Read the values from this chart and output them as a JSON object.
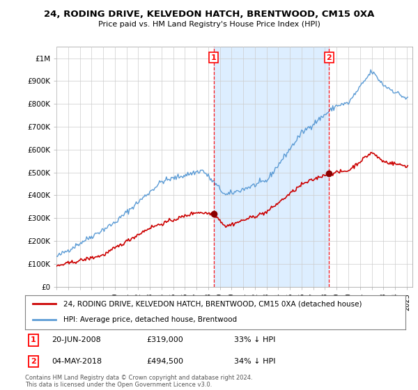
{
  "title": "24, RODING DRIVE, KELVEDON HATCH, BRENTWOOD, CM15 0XA",
  "subtitle": "Price paid vs. HM Land Registry's House Price Index (HPI)",
  "legend_line1": "24, RODING DRIVE, KELVEDON HATCH, BRENTWOOD, CM15 0XA (detached house)",
  "legend_line2": "HPI: Average price, detached house, Brentwood",
  "annotation1_date": "20-JUN-2008",
  "annotation1_price": "£319,000",
  "annotation1_hpi": "33% ↓ HPI",
  "annotation2_date": "04-MAY-2018",
  "annotation2_price": "£494,500",
  "annotation2_hpi": "34% ↓ HPI",
  "footer": "Contains HM Land Registry data © Crown copyright and database right 2024.\nThis data is licensed under the Open Government Licence v3.0.",
  "sale1_year": 2008.47,
  "sale1_price": 319000,
  "sale2_year": 2018.34,
  "sale2_price": 494500,
  "property_color": "#cc0000",
  "hpi_color": "#5b9bd5",
  "shade_color": "#ddeeff",
  "ylim_min": 0,
  "ylim_max": 1050000,
  "xlim_min": 1995,
  "xlim_max": 2025.5
}
